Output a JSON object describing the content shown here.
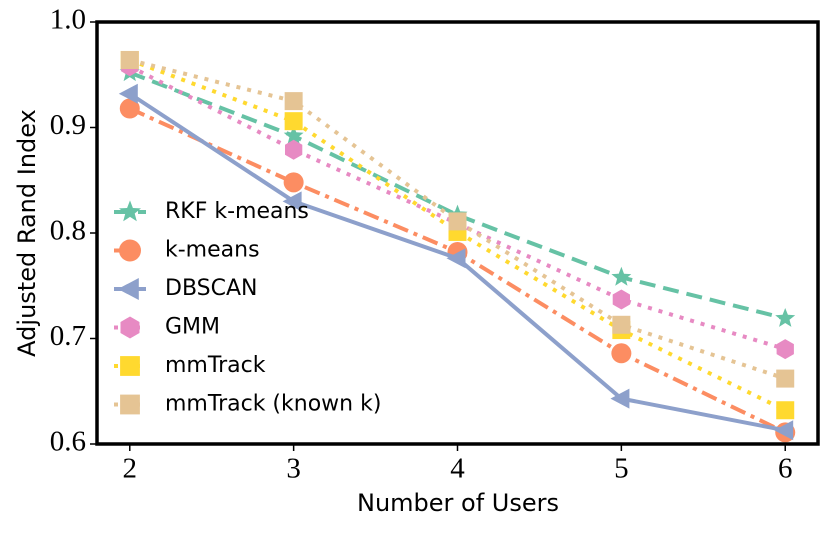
{
  "chart_data": {
    "type": "line",
    "x_label": "Number of Users",
    "y_label": "Adjusted Rand Index",
    "x": [
      2,
      3,
      4,
      5,
      6
    ],
    "xlim": [
      1.8,
      6.2
    ],
    "xticks": [
      2,
      3,
      4,
      5,
      6
    ],
    "ylim": [
      0.6,
      1.0
    ],
    "yticks": [
      0.6,
      0.7,
      0.8,
      0.9,
      {
        "value": 1.0,
        "label": "1.0"
      }
    ],
    "legend": "center left",
    "series": [
      {
        "name": "RKF k-means",
        "color": "#66c2a5",
        "marker": "star",
        "dash": "dashed",
        "values": [
          0.952,
          0.892,
          0.817,
          0.758,
          0.719
        ]
      },
      {
        "name": "k-means",
        "color": "#fc8d62",
        "marker": "circle",
        "dash": "dashdot",
        "values": [
          0.918,
          0.848,
          0.782,
          0.686,
          0.611
        ]
      },
      {
        "name": "DBSCAN",
        "color": "#8da0cb",
        "marker": "triangle-left",
        "dash": "solid",
        "values": [
          0.932,
          0.83,
          0.776,
          0.643,
          0.613
        ]
      },
      {
        "name": "GMM",
        "color": "#e78ac3",
        "marker": "hexagon",
        "dash": "dotted",
        "values": [
          0.958,
          0.879,
          0.809,
          0.737,
          0.69
        ]
      },
      {
        "name": "mmTrack",
        "color": "#ffd92f",
        "marker": "square",
        "dash": "dotted",
        "values": [
          0.964,
          0.906,
          0.801,
          0.708,
          0.632
        ]
      },
      {
        "name": "mmTrack (known k)",
        "color": "#e5c494",
        "marker": "square",
        "dash": "dotted",
        "values": [
          0.964,
          0.925,
          0.811,
          0.713,
          0.662
        ]
      }
    ]
  }
}
